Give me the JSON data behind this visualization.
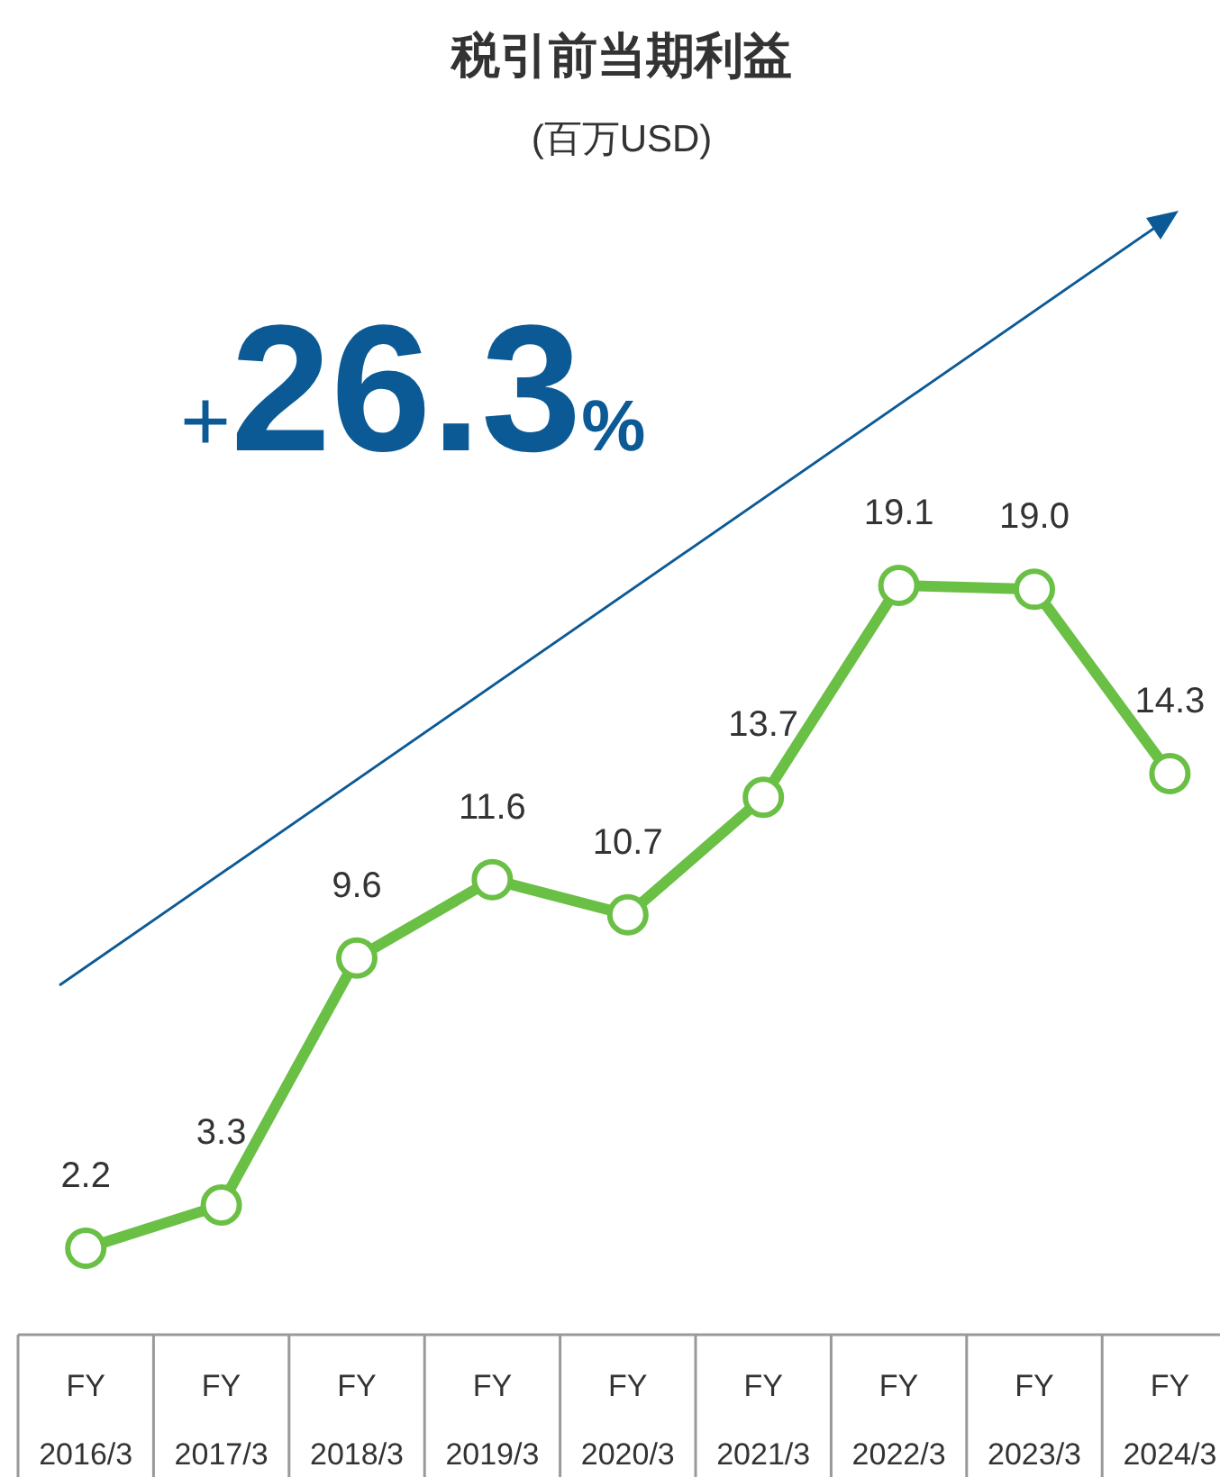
{
  "chart_data": {
    "type": "line",
    "title": "税引前当期利益",
    "subtitle": "(百万USD)",
    "categories": [
      "FY\n2016/3",
      "FY\n2017/3",
      "FY\n2018/3",
      "FY\n2019/3",
      "FY\n2020/3",
      "FY\n2021/3",
      "FY\n2022/3",
      "FY\n2023/3",
      "FY\n2024/3"
    ],
    "series": [
      {
        "color": "#6abf45",
        "values": [
          2.2,
          3.3,
          9.6,
          11.6,
          10.7,
          13.7,
          19.1,
          19.0,
          14.3
        ],
        "value_labels": [
          "2.2",
          "3.3",
          "9.6",
          "11.6",
          "10.7",
          "13.7",
          "19.1",
          "19.0",
          "14.3"
        ]
      }
    ],
    "marker": "circle",
    "line_style": "solid",
    "annotations": [
      "+26.3%"
    ]
  }
}
